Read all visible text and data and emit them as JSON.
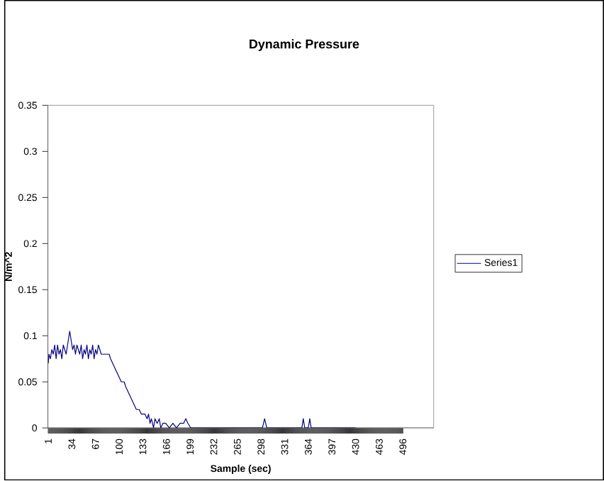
{
  "chart_data": {
    "type": "line",
    "title": "Dynamic Pressure",
    "xlabel": "Sample (sec)",
    "ylabel": "N/m^2",
    "xlim": [
      0.5,
      539
    ],
    "ylim": [
      0,
      0.35
    ],
    "xticks": [
      1,
      34,
      67,
      100,
      133,
      166,
      199,
      232,
      265,
      298,
      331,
      364,
      397,
      430,
      463,
      496
    ],
    "yticks": [
      0,
      0.05,
      0.1,
      0.15,
      0.2,
      0.25,
      0.3,
      0.35
    ],
    "legend": "right",
    "series": [
      {
        "name": "Series1",
        "color": "#000080",
        "x": [
          1,
          2,
          4,
          6,
          8,
          10,
          12,
          14,
          16,
          18,
          20,
          22,
          24,
          26,
          28,
          30,
          31,
          33,
          35,
          37,
          39,
          41,
          43,
          45,
          47,
          49,
          51,
          53,
          55,
          57,
          59,
          61,
          63,
          65,
          67,
          69,
          71,
          73,
          75,
          80,
          86,
          88,
          91,
          94,
          97,
          100,
          103,
          107,
          109,
          112,
          115,
          118,
          121,
          124,
          128,
          131,
          136,
          139,
          141,
          143,
          145,
          148,
          150,
          153,
          156,
          158,
          161,
          165,
          170,
          175,
          180,
          185,
          190,
          193,
          196,
          200,
          250,
          300,
          303,
          306,
          355,
          357,
          359,
          364,
          366,
          368,
          430
        ],
        "values": [
          0.07,
          0.08,
          0.075,
          0.085,
          0.08,
          0.09,
          0.075,
          0.09,
          0.08,
          0.085,
          0.075,
          0.09,
          0.085,
          0.08,
          0.09,
          0.1,
          0.105,
          0.095,
          0.085,
          0.09,
          0.08,
          0.09,
          0.085,
          0.08,
          0.09,
          0.075,
          0.085,
          0.08,
          0.09,
          0.075,
          0.085,
          0.08,
          0.09,
          0.075,
          0.085,
          0.08,
          0.09,
          0.085,
          0.08,
          0.08,
          0.08,
          0.075,
          0.07,
          0.065,
          0.06,
          0.055,
          0.05,
          0.05,
          0.045,
          0.04,
          0.035,
          0.03,
          0.025,
          0.02,
          0.02,
          0.015,
          0.015,
          0.01,
          0.015,
          0.005,
          0.01,
          0,
          0.01,
          0.005,
          0.01,
          0,
          0.005,
          0.005,
          0,
          0.005,
          0,
          0.005,
          0.005,
          0.01,
          0.005,
          0,
          0,
          0,
          0.01,
          0,
          0,
          0.01,
          0,
          0,
          0.01,
          0,
          0
        ]
      }
    ]
  }
}
